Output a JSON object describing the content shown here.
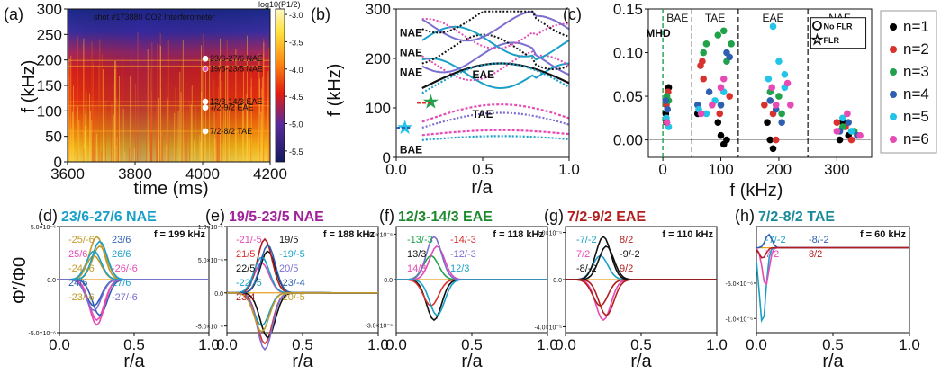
{
  "colors": {
    "n1": "#000000",
    "n2": "#d9312e",
    "n3": "#1fa24a",
    "n4": "#2f5fb0",
    "n5": "#22c4e8",
    "n6": "#e64bb5",
    "nae_text": "#e8d800",
    "eae_text": "#b21e1e",
    "tae_text": "#d96a1e",
    "bae_text": "#1e8a2e",
    "mhd_text": "#1ea04a"
  },
  "chart_data": [
    {
      "panel": "(a)",
      "type": "heatmap",
      "title": "shot #173880  CO2 Interferometer",
      "xlabel": "time (ms)",
      "ylabel": "f (kHz)",
      "x_ticks": [
        "3600",
        "3800",
        "4000",
        "4200"
      ],
      "y_ticks": [
        "0",
        "50",
        "100",
        "150",
        "200",
        "250",
        "300"
      ],
      "xlim": [
        3600,
        4200
      ],
      "ylim": [
        0,
        300
      ],
      "colorbar": {
        "title": "log10(P1/2)",
        "ticks": [
          "-3.0",
          "-3.5",
          "-4.0",
          "-4.5",
          "-5.0",
          "-5.5"
        ],
        "range": [
          -5.7,
          -2.9
        ]
      },
      "annotations": [
        {
          "text": "23/6-27/6 NAE",
          "f": 199
        },
        {
          "text": "19/5-23/5 NAE",
          "f": 188
        },
        {
          "text": "12/3-14/3 EAE",
          "f": 118
        },
        {
          "text": "7/2-9/2 EAE",
          "f": 110
        },
        {
          "text": "7/2-8/2 TAE",
          "f": 60
        }
      ]
    },
    {
      "panel": "(b)",
      "type": "line",
      "xlabel": "r/a",
      "ylabel": "f (kHz)",
      "x_ticks": [
        "0.0",
        "0.5",
        "1.0"
      ],
      "y_ticks": [
        "0",
        "100",
        "200",
        "300"
      ],
      "xlim": [
        0,
        1
      ],
      "ylim": [
        0,
        300
      ],
      "gap_labels": [
        "NAE",
        "NAE",
        "NAE",
        "EAE",
        "TAE",
        "BAE"
      ]
    },
    {
      "panel": "(c)",
      "type": "scatter",
      "xlabel": "f (kHz)",
      "x_ticks": [
        "0",
        "100",
        "200",
        "300"
      ],
      "y_ticks": [
        "0.00",
        "0.05",
        "0.10",
        "0.15"
      ],
      "xlim": [
        -25,
        360
      ],
      "ylim": [
        -0.02,
        0.15
      ],
      "zones": [
        "BAE",
        "TAE",
        "EAE",
        "NAE"
      ],
      "zone_bounds": [
        50,
        130,
        250
      ],
      "mhd_label": "MHD",
      "marker_legend": [
        "No FLR",
        "FLR"
      ],
      "series": [
        {
          "name": "n=1",
          "points": [
            [
              5,
              0.03
            ],
            [
              8,
              0.045
            ],
            [
              10,
              0.06
            ],
            [
              6,
              0.02
            ],
            [
              60,
              0.03
            ],
            [
              95,
              0.02
            ],
            [
              100,
              0.005
            ],
            [
              105,
              -0.005
            ],
            [
              110,
              0.0
            ],
            [
              180,
              0.02
            ],
            [
              185,
              0.0
            ],
            [
              190,
              -0.01
            ],
            [
              305,
              0.0
            ],
            [
              310,
              0.02
            ],
            [
              320,
              0.005
            ]
          ]
        },
        {
          "name": "n=2",
          "points": [
            [
              6,
              0.04
            ],
            [
              9,
              0.055
            ],
            [
              65,
              0.085
            ],
            [
              68,
              0.09
            ],
            [
              70,
              0.07
            ],
            [
              98,
              0.03
            ],
            [
              115,
              0.05
            ],
            [
              175,
              0.04
            ],
            [
              190,
              0.03
            ],
            [
              195,
              0.0
            ],
            [
              300,
              0.02
            ],
            [
              315,
              0.015
            ],
            [
              325,
              0.0
            ]
          ]
        },
        {
          "name": "n=3",
          "points": [
            [
              7,
              0.05
            ],
            [
              10,
              0.045
            ],
            [
              70,
              0.1
            ],
            [
              75,
              0.11
            ],
            [
              95,
              0.12
            ],
            [
              105,
              0.125
            ],
            [
              110,
              0.09
            ],
            [
              118,
              0.11
            ],
            [
              185,
              0.055
            ],
            [
              200,
              0.05
            ],
            [
              205,
              0.03
            ],
            [
              310,
              0.015
            ],
            [
              330,
              0.01
            ]
          ]
        },
        {
          "name": "n=4",
          "points": [
            [
              5,
              0.045
            ],
            [
              8,
              0.035
            ],
            [
              60,
              0.04
            ],
            [
              80,
              0.055
            ],
            [
              100,
              0.04
            ],
            [
              110,
              0.1
            ],
            [
              115,
              0.095
            ],
            [
              185,
              0.045
            ],
            [
              195,
              0.035
            ],
            [
              205,
              0.02
            ],
            [
              305,
              0.01
            ],
            [
              320,
              0.02
            ],
            [
              335,
              0.005
            ]
          ]
        },
        {
          "name": "n=5",
          "points": [
            [
              6,
              0.025
            ],
            [
              10,
              0.015
            ],
            [
              62,
              0.035
            ],
            [
              75,
              0.03
            ],
            [
              90,
              0.045
            ],
            [
              105,
              0.055
            ],
            [
              182,
              0.07
            ],
            [
              190,
              0.13
            ],
            [
              200,
              0.09
            ],
            [
              210,
              0.075
            ],
            [
              210,
              0.06
            ],
            [
              310,
              0.025
            ],
            [
              325,
              0.01
            ]
          ]
        },
        {
          "name": "n=6",
          "points": [
            [
              7,
              0.02
            ],
            [
              66,
              0.03
            ],
            [
              85,
              0.04
            ],
            [
              100,
              0.06
            ],
            [
              105,
              0.07
            ],
            [
              188,
              0.06
            ],
            [
              195,
              0.04
            ],
            [
              215,
              0.065
            ],
            [
              220,
              0.04
            ],
            [
              300,
              0.01
            ],
            [
              318,
              0.03
            ],
            [
              340,
              0.005
            ]
          ]
        }
      ]
    },
    {
      "panel": "(d)",
      "type": "line",
      "title": "23/6-27/6 NAE",
      "freq_label": "f = 199 kHz",
      "xlabel": "r/a",
      "ylabel": "Φ′/Φ0",
      "x_ticks": [
        "0.0",
        "0.5",
        "1.0"
      ],
      "y_ticks": [
        "5.0×10⁻⁶",
        "0.0",
        "-5.0×10⁻⁶"
      ],
      "ylim": [
        -5,
        5
      ],
      "mode_labels": [
        {
          "text": "-25/-6",
          "color": "#c29a28"
        },
        {
          "text": "25/6",
          "color": "#e64bb5"
        },
        {
          "text": "-24/-6",
          "color": "#c29a28"
        },
        {
          "text": "24/6",
          "color": "#2f5fb0"
        },
        {
          "text": "-23/-6",
          "color": "#c29a28"
        },
        {
          "text": "23/6",
          "color": "#2f5fb0"
        },
        {
          "text": "26/6",
          "color": "#1aa0c8"
        },
        {
          "text": "-26/-6",
          "color": "#e64bb5"
        },
        {
          "text": "27/6",
          "color": "#1aa0c8"
        },
        {
          "text": "-27/-6",
          "color": "#7a6fd0"
        }
      ]
    },
    {
      "panel": "(e)",
      "type": "line",
      "title": "19/5-23/5 NAE",
      "freq_label": "f = 188 kHz",
      "xlabel": "r/a",
      "x_ticks": [
        "0.0",
        "0.5",
        "1.0"
      ],
      "y_ticks": [
        "1.0×10⁻⁵",
        "5.0×10⁻⁶",
        "0.0",
        "-5.0×10⁻⁶"
      ],
      "ylim": [
        -6,
        10
      ],
      "mode_labels": [
        {
          "text": "-21/-5",
          "color": "#e64bb5"
        },
        {
          "text": "21/5",
          "color": "#d9312e"
        },
        {
          "text": "22/5",
          "color": "#111111"
        },
        {
          "text": "-22/-5",
          "color": "#1aa0c8"
        },
        {
          "text": "23/4",
          "color": "#b21e1e"
        },
        {
          "text": "19/5",
          "color": "#111111"
        },
        {
          "text": "-19/-5",
          "color": "#1aa0c8"
        },
        {
          "text": "20/5",
          "color": "#7a6fd0"
        },
        {
          "text": "-23/-4",
          "color": "#2f5fb0"
        },
        {
          "text": "-20/-5",
          "color": "#c29a28"
        }
      ]
    },
    {
      "panel": "(f)",
      "type": "line",
      "title": "12/3-14/3 EAE",
      "freq_label": "f = 118 kHz",
      "xlabel": "r/a",
      "x_ticks": [
        "0.0",
        "0.5",
        "1.0"
      ],
      "y_ticks": [
        "3.0×10⁻⁶",
        "0.0",
        "-3.0×10⁻⁶"
      ],
      "ylim": [
        -3.5,
        3.5
      ],
      "mode_labels": [
        {
          "text": "-13/-3",
          "color": "#1fa24a"
        },
        {
          "text": "13/3",
          "color": "#111111"
        },
        {
          "text": "14/3",
          "color": "#e64bb5"
        },
        {
          "text": "-14/-3",
          "color": "#d9312e"
        },
        {
          "text": "-12/-3",
          "color": "#7a6fd0"
        },
        {
          "text": "12/3",
          "color": "#1aa0c8"
        }
      ]
    },
    {
      "panel": "(g)",
      "type": "line",
      "title": "7/2-9/2 EAE",
      "freq_label": "f = 110 kHz",
      "xlabel": "r/a",
      "x_ticks": [
        "0.0",
        "0.5",
        "1.0"
      ],
      "y_ticks": [
        "4.0×10⁻⁵",
        "0.0",
        "-4.0×10⁻⁵"
      ],
      "ylim": [
        -4.5,
        4.5
      ],
      "mode_labels": [
        {
          "text": "-7/-2",
          "color": "#1aa0c8"
        },
        {
          "text": "7/2",
          "color": "#e64bb5"
        },
        {
          "text": "-8/-2",
          "color": "#111111"
        },
        {
          "text": "8/2",
          "color": "#b21e1e"
        },
        {
          "text": "-9/-2",
          "color": "#111111"
        },
        {
          "text": "9/2",
          "color": "#b21e1e"
        }
      ]
    },
    {
      "panel": "(h)",
      "type": "line",
      "title": "7/2-8/2 TAE",
      "freq_label": "f = 60 kHz",
      "xlabel": "r/a",
      "x_ticks": [
        "0.0",
        "0.5",
        "1.0"
      ],
      "y_ticks": [
        "-5.0×10⁻⁶",
        "-1.0×10⁻⁵"
      ],
      "ylim": [
        -12,
        3
      ],
      "mode_labels": [
        {
          "text": "-7/-2",
          "color": "#1aa0c8"
        },
        {
          "text": "7/2",
          "color": "#e64bb5"
        },
        {
          "text": "-8/-2",
          "color": "#2f5fb0"
        },
        {
          "text": "8/2",
          "color": "#b21e1e"
        }
      ]
    }
  ]
}
